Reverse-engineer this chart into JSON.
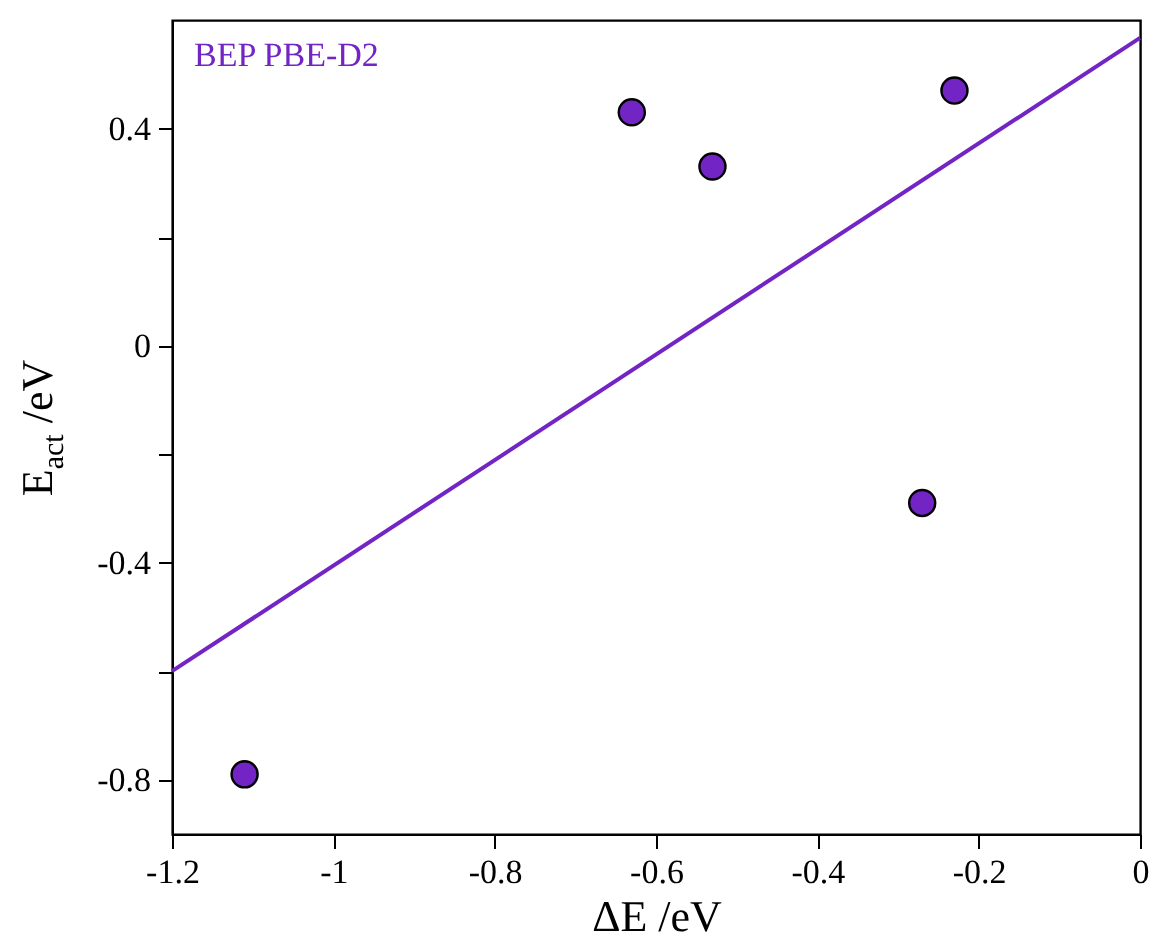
{
  "chart_data": {
    "type": "scatter",
    "xlabel": "ΔE /eV",
    "ylabel": "E$_{act}$ /eV",
    "annotations": [
      "BEP PBE-D2"
    ],
    "xlim": [
      -1.2,
      0
    ],
    "xticks": [
      -1.2,
      -1,
      -0.8,
      -0.6,
      -0.4,
      -0.2,
      0
    ],
    "ylim": [
      -0.9,
      0.6
    ],
    "yticks": [
      -0.8,
      {
        "value": -0.6,
        "label": null
      },
      -0.4,
      {
        "value": -0.2,
        "label": null
      },
      0,
      {
        "value": 0.2,
        "label": null
      },
      0.4
    ],
    "series": [
      {
        "marker": "circle",
        "color": "#7324c4",
        "x": [
          -1.11,
          -0.63,
          -0.53,
          -0.27,
          -0.23
        ],
        "values": [
          -0.79,
          0.43,
          0.33,
          -0.29,
          0.47
        ]
      },
      {
        "type": "line",
        "color": "#7324c4",
        "x": [
          -1.2,
          0
        ],
        "values": [
          -0.6,
          0.567
        ]
      }
    ]
  }
}
